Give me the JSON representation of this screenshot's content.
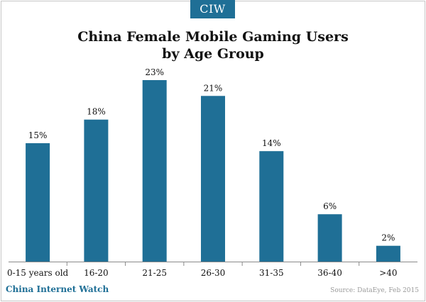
{
  "badge": {
    "label": "CIW"
  },
  "footer": {
    "brand": "China Internet Watch",
    "source": "Source: DataEye, Feb 2015"
  },
  "colors": {
    "bar": "#1f6f96",
    "accent": "#1f6f96"
  },
  "chart_data": {
    "type": "bar",
    "title_lines": [
      "China Female Mobile Gaming Users",
      "by Age Group"
    ],
    "categories": [
      "0-15 years old",
      "16-20",
      "21-25",
      "26-30",
      "31-35",
      "36-40",
      ">40"
    ],
    "values": [
      15,
      18,
      23,
      21,
      14,
      6,
      2
    ],
    "data_labels": [
      "15%",
      "18%",
      "23%",
      "21%",
      "14%",
      "6%",
      "2%"
    ],
    "unit": "%",
    "ylim": [
      0,
      25
    ],
    "grid": false,
    "legend": "none"
  }
}
